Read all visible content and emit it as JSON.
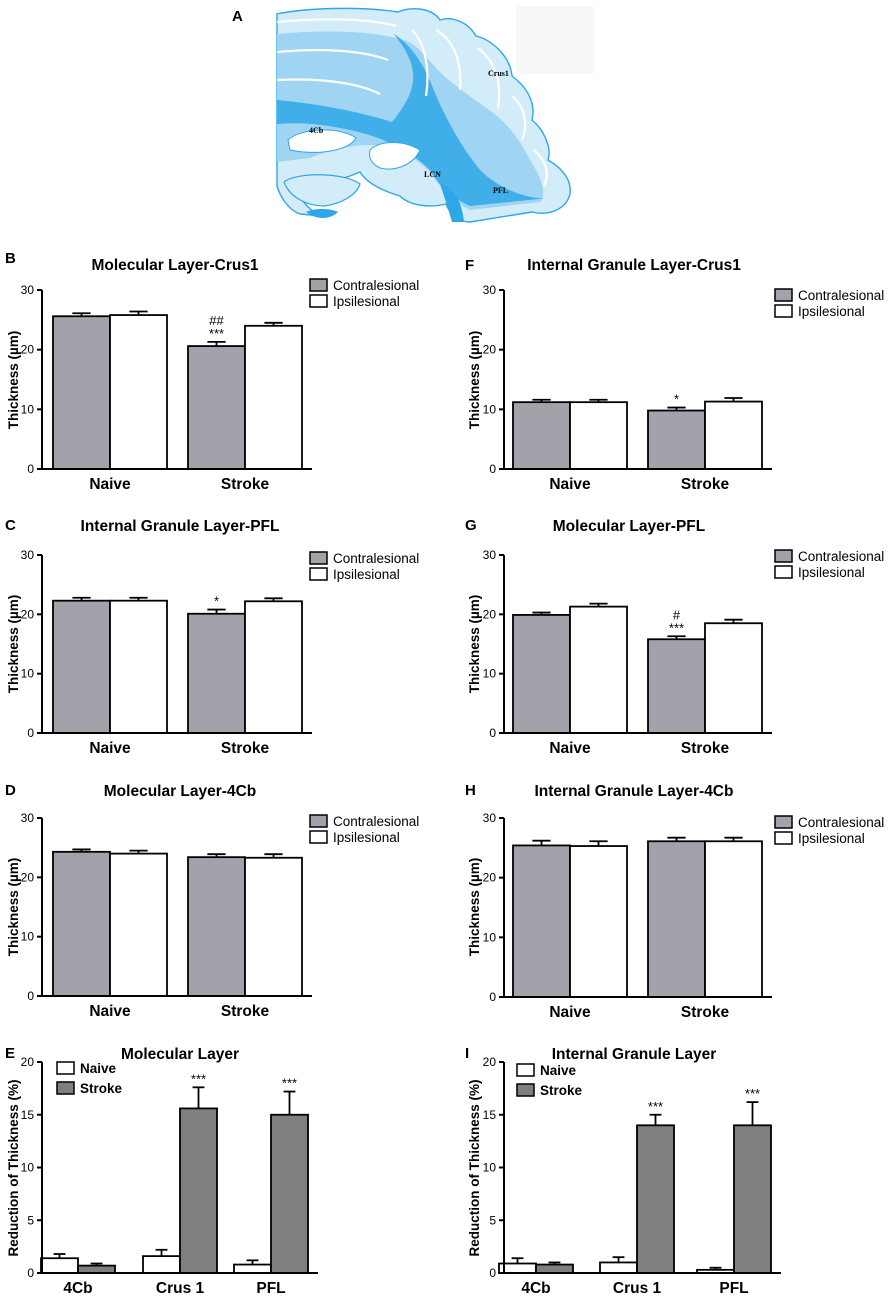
{
  "figure": {
    "brain_panel": {
      "letter": "A",
      "labels": [
        "Crus1",
        "4Cb",
        "LCN",
        "PFL"
      ]
    }
  },
  "colors": {
    "contralesional": "#a2a3aa",
    "ipsilesional": "#ffffff",
    "naive": "#ffffff",
    "stroke": "#7f7f7f",
    "brain_dark": "#2ea7e8",
    "brain_mid": "#9fd4f2",
    "brain_light": "#d3ecfa"
  },
  "chart_data": [
    {
      "panel": "B",
      "type": "bar",
      "title": "Molecular Layer-Crus1",
      "ylabel": "Thickness (µm)",
      "xlabel": "",
      "ylim": [
        0,
        30
      ],
      "yticks": [
        0,
        10,
        20,
        30
      ],
      "categories": [
        "Naive",
        "Stroke"
      ],
      "legend": "top-right",
      "series": [
        {
          "name": "Contralesional",
          "color_key": "contralesional",
          "values": [
            25.6,
            20.6
          ],
          "errors": [
            0.5,
            0.7
          ]
        },
        {
          "name": "Ipsilesional",
          "color_key": "ipsilesional",
          "values": [
            25.8,
            24.0
          ],
          "errors": [
            0.6,
            0.5
          ]
        }
      ],
      "annotations": [
        {
          "series": 0,
          "category": 1,
          "lines": [
            "##",
            "***"
          ]
        }
      ]
    },
    {
      "panel": "F",
      "type": "bar",
      "title": "Internal Granule Layer-Crus1",
      "ylabel": "Thickness (µm)",
      "xlabel": "",
      "ylim": [
        0,
        30
      ],
      "yticks": [
        0,
        10,
        20,
        30
      ],
      "categories": [
        "Naive",
        "Stroke"
      ],
      "legend": "top-right",
      "series": [
        {
          "name": "Contralesional",
          "color_key": "contralesional",
          "values": [
            11.2,
            9.8
          ],
          "errors": [
            0.4,
            0.5
          ]
        },
        {
          "name": "Ipsilesional",
          "color_key": "ipsilesional",
          "values": [
            11.2,
            11.3
          ],
          "errors": [
            0.4,
            0.6
          ]
        }
      ],
      "annotations": [
        {
          "series": 0,
          "category": 1,
          "lines": [
            "*"
          ]
        }
      ]
    },
    {
      "panel": "C",
      "type": "bar",
      "title": "Internal Granule Layer-PFL",
      "ylabel": "Thickness (µm)",
      "xlabel": "",
      "ylim": [
        0,
        30
      ],
      "yticks": [
        0,
        10,
        20,
        30
      ],
      "categories": [
        "Naive",
        "Stroke"
      ],
      "legend": "top-right",
      "series": [
        {
          "name": "Contralesional",
          "color_key": "contralesional",
          "values": [
            22.3,
            20.1
          ],
          "errors": [
            0.5,
            0.7
          ]
        },
        {
          "name": "Ipsilesional",
          "color_key": "ipsilesional",
          "values": [
            22.3,
            22.2
          ],
          "errors": [
            0.5,
            0.5
          ]
        }
      ],
      "annotations": [
        {
          "series": 0,
          "category": 1,
          "lines": [
            "*"
          ]
        }
      ]
    },
    {
      "panel": "G",
      "type": "bar",
      "title": "Molecular Layer-PFL",
      "ylabel": "Thickness (µm)",
      "xlabel": "",
      "ylim": [
        0,
        30
      ],
      "yticks": [
        0,
        10,
        20,
        30
      ],
      "categories": [
        "Naive",
        "Stroke"
      ],
      "legend": "top-right",
      "series": [
        {
          "name": "Contralesional",
          "color_key": "contralesional",
          "values": [
            19.9,
            15.8
          ],
          "errors": [
            0.4,
            0.5
          ]
        },
        {
          "name": "Ipsilesional",
          "color_key": "ipsilesional",
          "values": [
            21.3,
            18.5
          ],
          "errors": [
            0.5,
            0.6
          ]
        }
      ],
      "annotations": [
        {
          "series": 0,
          "category": 1,
          "lines": [
            "#",
            "***"
          ]
        }
      ]
    },
    {
      "panel": "D",
      "type": "bar",
      "title": "Molecular Layer-4Cb",
      "ylabel": "Thickness (µm)",
      "xlabel": "",
      "ylim": [
        0,
        30
      ],
      "yticks": [
        0,
        10,
        20,
        30
      ],
      "categories": [
        "Naive",
        "Stroke"
      ],
      "legend": "top-right",
      "series": [
        {
          "name": "Contralesional",
          "color_key": "contralesional",
          "values": [
            24.3,
            23.4
          ],
          "errors": [
            0.4,
            0.5
          ]
        },
        {
          "name": "Ipsilesional",
          "color_key": "ipsilesional",
          "values": [
            24.0,
            23.3
          ],
          "errors": [
            0.5,
            0.6
          ]
        }
      ],
      "annotations": []
    },
    {
      "panel": "H",
      "type": "bar",
      "title": "Internal Granule Layer-4Cb",
      "ylabel": "Thickness (µm)",
      "xlabel": "",
      "ylim": [
        0,
        30
      ],
      "yticks": [
        0,
        10,
        20,
        30
      ],
      "categories": [
        "Naive",
        "Stroke"
      ],
      "legend": "top-right",
      "series": [
        {
          "name": "Contralesional",
          "color_key": "contralesional",
          "values": [
            25.4,
            26.1
          ],
          "errors": [
            0.8,
            0.6
          ]
        },
        {
          "name": "Ipsilesional",
          "color_key": "ipsilesional",
          "values": [
            25.3,
            26.1
          ],
          "errors": [
            0.8,
            0.6
          ]
        }
      ],
      "annotations": []
    },
    {
      "panel": "E",
      "type": "bar",
      "title": "Molecular Layer",
      "ylabel": "Reduction of Thickness (%)",
      "xlabel": "",
      "ylim": [
        0,
        20
      ],
      "yticks": [
        0,
        5,
        10,
        15,
        20
      ],
      "categories": [
        "4Cb",
        "Crus 1",
        "PFL"
      ],
      "legend": "top-left",
      "series": [
        {
          "name": "Naive",
          "color_key": "naive",
          "values": [
            1.4,
            1.6,
            0.8
          ],
          "errors": [
            0.4,
            0.6,
            0.4
          ]
        },
        {
          "name": "Stroke",
          "color_key": "stroke",
          "values": [
            0.7,
            15.6,
            15.0
          ],
          "errors": [
            0.2,
            2.0,
            2.2
          ]
        }
      ],
      "annotations": [
        {
          "series": 1,
          "category": 1,
          "lines": [
            "***"
          ]
        },
        {
          "series": 1,
          "category": 2,
          "lines": [
            "***"
          ]
        }
      ]
    },
    {
      "panel": "I",
      "type": "bar",
      "title": "Internal Granule Layer",
      "ylabel": "Reduction of Thickness (%)",
      "xlabel": "",
      "ylim": [
        0,
        20
      ],
      "yticks": [
        0,
        5,
        10,
        15,
        20
      ],
      "categories": [
        "4Cb",
        "Crus 1",
        "PFL"
      ],
      "legend": "top-left",
      "series": [
        {
          "name": "Naive",
          "color_key": "naive",
          "values": [
            0.9,
            1.0,
            0.3
          ],
          "errors": [
            0.5,
            0.5,
            0.2
          ]
        },
        {
          "name": "Stroke",
          "color_key": "stroke",
          "values": [
            0.8,
            14.0,
            14.0
          ],
          "errors": [
            0.2,
            1.0,
            2.2
          ]
        }
      ],
      "annotations": [
        {
          "series": 1,
          "category": 1,
          "lines": [
            "***"
          ]
        },
        {
          "series": 1,
          "category": 2,
          "lines": [
            "***"
          ]
        }
      ]
    }
  ]
}
